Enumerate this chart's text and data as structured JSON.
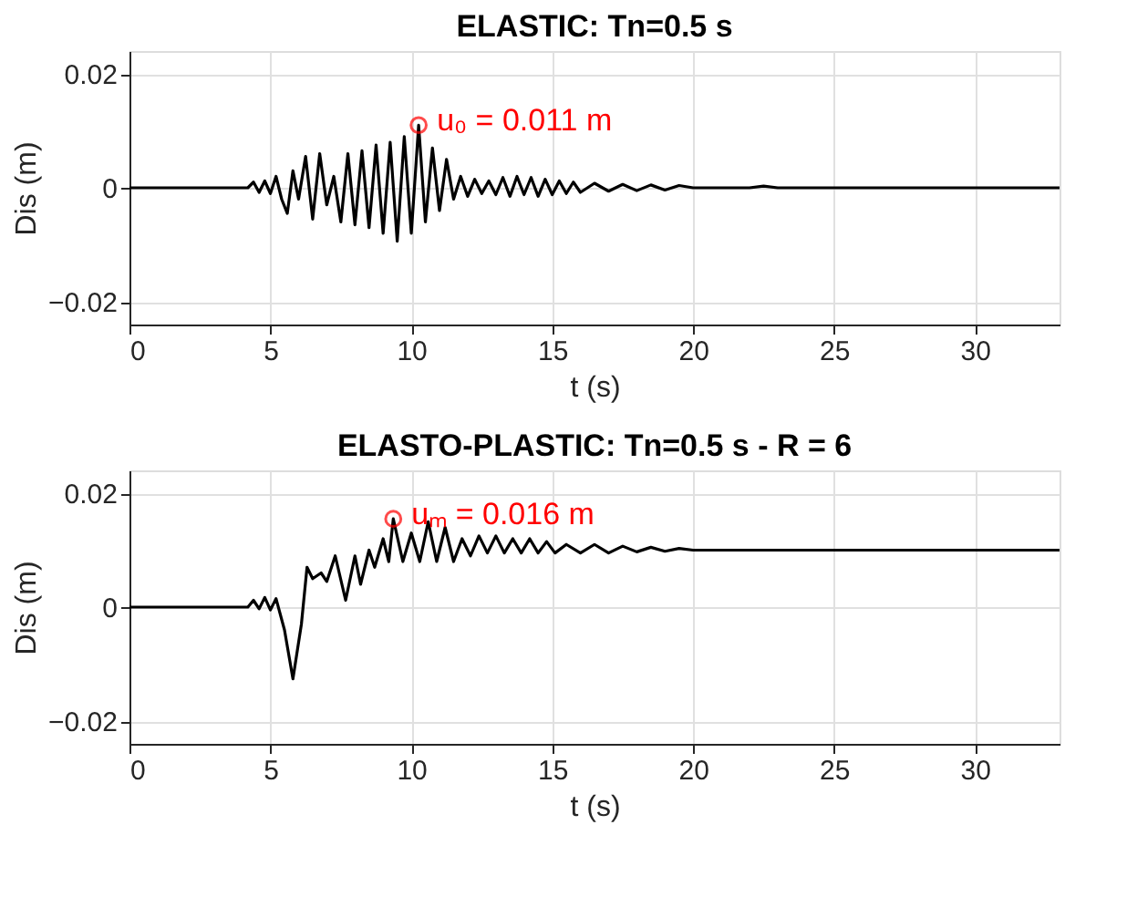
{
  "chart_data": [
    {
      "type": "line",
      "title": "ELASTIC: Tn=0.5 s",
      "xlabel": "t (s)",
      "ylabel": "Dis (m)",
      "xlim": [
        0,
        33
      ],
      "ylim": [
        -0.024,
        0.024
      ],
      "xticks": [
        0,
        5,
        10,
        15,
        20,
        25,
        30
      ],
      "yticks": [
        -0.02,
        0,
        0.02
      ],
      "grid": true,
      "marker": "none",
      "line_style": "solid",
      "annotations": [
        {
          "text": "u₀ = 0.011 m",
          "x": 10.26,
          "y": 0.011
        }
      ],
      "x": [
        0,
        4.2,
        4.4,
        4.6,
        4.8,
        5.0,
        5.2,
        5.4,
        5.6,
        5.8,
        6.0,
        6.25,
        6.5,
        6.75,
        7.0,
        7.25,
        7.5,
        7.75,
        8.0,
        8.25,
        8.5,
        8.75,
        9.0,
        9.25,
        9.5,
        9.75,
        10.0,
        10.26,
        10.5,
        10.75,
        11.0,
        11.25,
        11.5,
        11.75,
        12.0,
        12.25,
        12.5,
        12.75,
        13.0,
        13.25,
        13.5,
        13.75,
        14.0,
        14.25,
        14.5,
        14.75,
        15.0,
        15.25,
        15.5,
        15.75,
        16.0,
        16.5,
        17.0,
        17.5,
        18.0,
        18.5,
        19.0,
        19.5,
        20.0,
        22.0,
        22.5,
        23.0,
        33.0
      ],
      "series": [
        {
          "color": "#000000",
          "values": [
            0,
            0,
            0.001,
            -0.0008,
            0.0012,
            -0.001,
            0.002,
            -0.002,
            -0.0045,
            0.003,
            -0.002,
            0.0055,
            -0.0055,
            0.006,
            -0.003,
            0.002,
            -0.006,
            0.006,
            -0.0065,
            0.0065,
            -0.007,
            0.0075,
            -0.008,
            0.008,
            -0.0094,
            0.009,
            -0.008,
            0.011,
            -0.006,
            0.007,
            -0.004,
            0.005,
            -0.002,
            0.002,
            -0.0015,
            0.0015,
            -0.001,
            0.0012,
            -0.0012,
            0.0018,
            -0.0015,
            0.002,
            -0.0012,
            0.0018,
            -0.0015,
            0.0015,
            -0.0012,
            0.0012,
            -0.001,
            0.001,
            -0.0008,
            0.0008,
            -0.0006,
            0.0006,
            -0.0005,
            0.0005,
            -0.0004,
            0.0004,
            0,
            0,
            0.0003,
            0,
            0
          ]
        }
      ]
    },
    {
      "type": "line",
      "title": "ELASTO-PLASTIC: Tn=0.5 s - R = 6",
      "xlabel": "t (s)",
      "ylabel": "Dis (m)",
      "xlim": [
        0,
        33
      ],
      "ylim": [
        -0.024,
        0.024
      ],
      "xticks": [
        0,
        5,
        10,
        15,
        20,
        25,
        30
      ],
      "yticks": [
        -0.02,
        0,
        0.02
      ],
      "grid": true,
      "marker": "none",
      "line_style": "solid",
      "annotations": [
        {
          "text": "uₘ = 0.016 m",
          "x": 9.36,
          "y": 0.0155
        }
      ],
      "x": [
        0,
        4.2,
        4.4,
        4.6,
        4.8,
        5.0,
        5.2,
        5.5,
        5.8,
        6.1,
        6.3,
        6.5,
        6.8,
        7.0,
        7.3,
        7.67,
        8.0,
        8.2,
        8.5,
        8.7,
        9.0,
        9.2,
        9.36,
        9.7,
        10.0,
        10.3,
        10.6,
        10.9,
        11.2,
        11.5,
        11.8,
        12.1,
        12.4,
        12.7,
        13.0,
        13.3,
        13.6,
        13.9,
        14.2,
        14.5,
        14.8,
        15.1,
        15.5,
        16.0,
        16.5,
        17.0,
        17.5,
        18.0,
        18.5,
        19.0,
        19.5,
        20.0,
        33.0
      ],
      "series": [
        {
          "color": "#000000",
          "values": [
            0,
            0,
            0.0012,
            -0.0003,
            0.0017,
            -0.0005,
            0.0015,
            -0.004,
            -0.0126,
            -0.003,
            0.007,
            0.005,
            0.006,
            0.0045,
            0.009,
            0.0012,
            0.009,
            0.004,
            0.01,
            0.007,
            0.012,
            0.008,
            0.0155,
            0.008,
            0.013,
            0.008,
            0.015,
            0.008,
            0.014,
            0.008,
            0.012,
            0.009,
            0.0125,
            0.0095,
            0.0125,
            0.0095,
            0.012,
            0.0095,
            0.012,
            0.0095,
            0.0115,
            0.0095,
            0.011,
            0.0095,
            0.011,
            0.0095,
            0.0107,
            0.0097,
            0.0105,
            0.0098,
            0.0103,
            0.01,
            0.01
          ]
        }
      ]
    }
  ]
}
